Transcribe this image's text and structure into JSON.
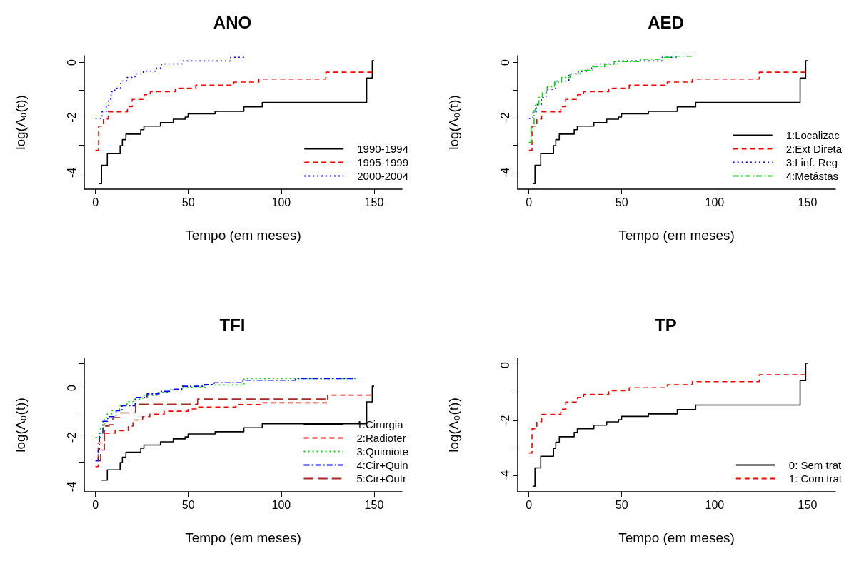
{
  "chart_data": [
    {
      "type": "step",
      "title": "ANO",
      "xlabel": "Tempo (em meses)",
      "ylabel": "log(Λ₀(t))",
      "xlim": [
        -6,
        165
      ],
      "ylim": [
        -4.6,
        0.25
      ],
      "xticks": [
        0,
        50,
        100,
        150
      ],
      "yticks": [
        0,
        {
          "value": -1,
          "label": null
        },
        -2,
        {
          "value": -3,
          "label": null
        },
        -4
      ],
      "grid": false,
      "legend": "bottom right",
      "series": [
        {
          "name": "1990-1994",
          "color": "#000000",
          "line_style": "solid",
          "x": [
            2,
            3.3,
            6.4,
            13.3,
            14.5,
            16.4,
            24.4,
            26.1,
            35,
            41.9,
            48.3,
            49.9,
            64.4,
            79.9,
            89.8,
            146,
            149,
            150
          ],
          "values": [
            -4.4,
            -3.73,
            -3.31,
            -3.02,
            -2.8,
            -2.6,
            -2.44,
            -2.31,
            -2.18,
            -2.06,
            -1.98,
            -1.86,
            -1.77,
            -1.61,
            -1.45,
            -0.56,
            0.07,
            0.07
          ]
        },
        {
          "name": "1995-1999",
          "color": "#ff0000",
          "line_style": "dashed",
          "x": [
            0,
            1.7,
            4.3,
            6.9,
            17.2,
            19.8,
            26.2,
            29.5,
            43,
            54,
            74.5,
            88,
            124,
            149
          ],
          "values": [
            -3.19,
            -2.31,
            -2.05,
            -1.79,
            -1.6,
            -1.34,
            -1.17,
            -1.06,
            -0.93,
            -0.82,
            -0.71,
            -0.6,
            -0.35,
            -0.35
          ]
        },
        {
          "name": "2000-2004",
          "color": "#0000ff",
          "line_style": "dotted",
          "x": [
            0,
            3.6,
            5.8,
            7.1,
            8.4,
            10.4,
            13.6,
            16.8,
            21.3,
            25.8,
            32.9,
            35.5,
            47,
            72.8,
            80
          ],
          "values": [
            -2.03,
            -1.79,
            -1.57,
            -1.33,
            -1.06,
            -0.93,
            -0.67,
            -0.54,
            -0.41,
            -0.31,
            -0.2,
            -0.05,
            0.06,
            0.19,
            0.19
          ]
        }
      ]
    },
    {
      "type": "step",
      "title": "AED",
      "xlabel": "Tempo (em meses)",
      "ylabel": "log(Λ₀(t))",
      "xlim": [
        -6,
        165
      ],
      "ylim": [
        -4.6,
        0.25
      ],
      "xticks": [
        0,
        50,
        100,
        150
      ],
      "yticks": [
        0,
        {
          "value": -1,
          "label": null
        },
        -2,
        {
          "value": -3,
          "label": null
        },
        -4
      ],
      "grid": false,
      "legend": "bottom right",
      "series": [
        {
          "name": "1:Localizac",
          "color": "#000000",
          "line_style": "solid",
          "x": [
            2,
            3.3,
            6.4,
            13.3,
            14.5,
            16.4,
            24.4,
            26.1,
            35,
            41.9,
            48.3,
            49.9,
            64.4,
            79.9,
            89.8,
            146,
            149,
            150
          ],
          "values": [
            -4.4,
            -3.73,
            -3.31,
            -3.02,
            -2.8,
            -2.6,
            -2.44,
            -2.31,
            -2.18,
            -2.06,
            -1.98,
            -1.86,
            -1.77,
            -1.61,
            -1.45,
            -0.56,
            0.07,
            0.07
          ]
        },
        {
          "name": "2:Ext Direta",
          "color": "#ff0000",
          "line_style": "dashed",
          "x": [
            0,
            1.7,
            4.3,
            6.9,
            17.2,
            19.8,
            26.2,
            29.5,
            43,
            54,
            74.5,
            88,
            124,
            149
          ],
          "values": [
            -3.19,
            -2.31,
            -2.05,
            -1.79,
            -1.6,
            -1.34,
            -1.17,
            -1.06,
            -0.93,
            -0.82,
            -0.71,
            -0.6,
            -0.35,
            -0.35
          ]
        },
        {
          "name": "3:Linf. Reg",
          "color": "#0000ff",
          "line_style": "dotted",
          "x": [
            0,
            2.2,
            4.1,
            6.7,
            9.3,
            14.4,
            21.5,
            26.6,
            31.8,
            35,
            48.5,
            71.7,
            79.4
          ],
          "values": [
            -2.03,
            -1.79,
            -1.53,
            -1.27,
            -0.97,
            -0.67,
            -0.41,
            -0.32,
            -0.2,
            -0.05,
            0.06,
            0.19,
            0.19
          ]
        },
        {
          "name": "4:Metástas",
          "color": "#00dd00",
          "line_style": "dashdot",
          "x": [
            0,
            1.2,
            2.8,
            3.5,
            5.4,
            7.3,
            9.9,
            13.8,
            17.6,
            22.1,
            27.9,
            34.4,
            40.8,
            45.9,
            60.1,
            73,
            79.4,
            87.8
          ],
          "values": [
            -2.9,
            -2.31,
            -1.75,
            -1.53,
            -1.27,
            -1.1,
            -0.88,
            -0.71,
            -0.54,
            -0.41,
            -0.28,
            -0.15,
            -0.06,
            0.04,
            0.12,
            0.19,
            0.23,
            0.23
          ]
        }
      ]
    },
    {
      "type": "step",
      "title": "TFI",
      "xlabel": "Tempo (em meses)",
      "ylabel": "log(Λ₀(t))",
      "xlim": [
        -6,
        165
      ],
      "ylim": [
        -4.2,
        1.2
      ],
      "xticks": [
        0,
        50,
        100,
        150
      ],
      "yticks": [
        {
          "value": 1,
          "label": null
        },
        0,
        {
          "value": -1,
          "label": null
        },
        -2,
        {
          "value": -3,
          "label": null
        },
        -4
      ],
      "grid": false,
      "legend": "bottom right",
      "series": [
        {
          "name": "1:Cirurgia",
          "color": "#000000",
          "line_style": "solid",
          "x": [
            3.3,
            6.4,
            13.3,
            14.5,
            16.4,
            24.4,
            26.1,
            35,
            41.9,
            48.3,
            49.9,
            64.4,
            79.9,
            89.8,
            146,
            149,
            150
          ],
          "values": [
            -3.73,
            -3.31,
            -3.02,
            -2.8,
            -2.6,
            -2.44,
            -2.31,
            -2.18,
            -2.06,
            -1.98,
            -1.86,
            -1.77,
            -1.61,
            -1.45,
            -0.56,
            0.07,
            0.07
          ]
        },
        {
          "name": "2:Radioter",
          "color": "#ff0000",
          "line_style": "dashed",
          "x": [
            0,
            1.5,
            4.8,
            10.6,
            17.7,
            20.2,
            25.4,
            29.3,
            37,
            49.9,
            54.3,
            75.6,
            89.1,
            125,
            148.2
          ],
          "values": [
            -3.18,
            -2.22,
            -1.83,
            -1.73,
            -1.54,
            -1.3,
            -1.16,
            -1.06,
            -0.94,
            -0.85,
            -0.77,
            -0.67,
            -0.6,
            -0.29,
            -0.29
          ]
        },
        {
          "name": "3:Quimiote",
          "color": "#00dd00",
          "line_style": "dotted",
          "x": [
            0,
            2.7,
            4.8,
            6.4,
            9,
            12.9,
            17,
            20.9,
            25.4,
            33.1,
            39.6,
            47.3,
            59,
            80,
            140
          ],
          "values": [
            -2,
            -1.6,
            -1.2,
            -1.05,
            -0.92,
            -0.72,
            -0.55,
            -0.45,
            -0.3,
            -0.18,
            -0.08,
            0.03,
            0.12,
            0.38,
            0.38
          ]
        },
        {
          "name": "4:Cir+Quin",
          "color": "#0000ff",
          "line_style": "dashdot",
          "x": [
            0,
            1.5,
            2.1,
            4,
            6.6,
            11.1,
            14.3,
            21.4,
            27.8,
            34.3,
            40.7,
            46.5,
            58.8,
            63.9,
            79.4,
            107.7,
            138.6
          ],
          "values": [
            -2.95,
            -2.51,
            -1.83,
            -1.35,
            -1.16,
            -0.92,
            -0.72,
            -0.38,
            -0.24,
            -0.14,
            -0.05,
            0.07,
            0.14,
            0.21,
            0.31,
            0.38,
            0.38
          ]
        },
        {
          "name": "5:Cir+Outr",
          "color": "#a52a2a",
          "line_style": "longdash",
          "x": [
            1.3,
            2.8,
            4.8,
            7.4,
            9.4,
            13.2,
            21.6,
            55,
            123.8
          ],
          "values": [
            -2.95,
            -2.51,
            -1.54,
            -1.49,
            -1.2,
            -1.01,
            -0.66,
            -0.45,
            -0.45
          ]
        }
      ]
    },
    {
      "type": "step",
      "title": "TP",
      "xlabel": "Tempo (em meses)",
      "ylabel": "log(Λ₀(t))",
      "xlim": [
        -6,
        165
      ],
      "ylim": [
        -4.6,
        0.25
      ],
      "xticks": [
        0,
        50,
        100,
        150
      ],
      "yticks": [
        0,
        {
          "value": -1,
          "label": null
        },
        -2,
        {
          "value": -3,
          "label": null
        },
        -4
      ],
      "grid": false,
      "legend": "bottom right",
      "series": [
        {
          "name": "0: Sem trat",
          "color": "#000000",
          "line_style": "solid",
          "x": [
            2,
            3.3,
            6.4,
            13.3,
            14.5,
            16.4,
            24.4,
            26.1,
            35,
            41.9,
            48.3,
            49.9,
            64.4,
            79.9,
            89.8,
            146,
            149,
            150
          ],
          "values": [
            -4.4,
            -3.73,
            -3.31,
            -3.02,
            -2.8,
            -2.6,
            -2.44,
            -2.31,
            -2.18,
            -2.06,
            -1.98,
            -1.86,
            -1.77,
            -1.61,
            -1.45,
            -0.56,
            0.07,
            0.07
          ]
        },
        {
          "name": "1: Com trat",
          "color": "#ff0000",
          "line_style": "dashed",
          "x": [
            0,
            1.7,
            4.3,
            6.9,
            17.2,
            19.8,
            26.2,
            29.5,
            43,
            54,
            74.5,
            88,
            124,
            149
          ],
          "values": [
            -3.19,
            -2.31,
            -2.05,
            -1.79,
            -1.6,
            -1.34,
            -1.17,
            -1.06,
            -0.93,
            -0.82,
            -0.71,
            -0.6,
            -0.35,
            -0.35
          ]
        }
      ]
    }
  ]
}
